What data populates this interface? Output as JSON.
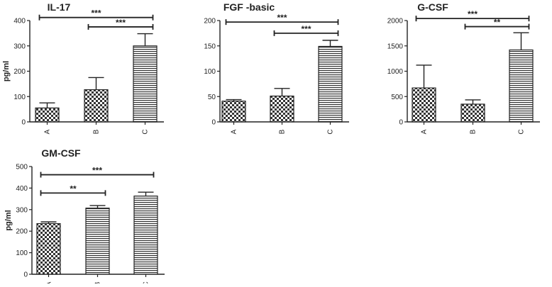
{
  "chart_data": [
    {
      "type": "bar",
      "title": "IL-17",
      "ylabel": "pg/ml",
      "categories": [
        "A",
        "B",
        "C"
      ],
      "values": [
        55,
        127,
        300
      ],
      "errors": [
        20,
        48,
        48
      ],
      "ylim": [
        0,
        400
      ],
      "yticks": [
        "0",
        "100",
        "200",
        "300",
        "400"
      ],
      "significance": [
        {
          "from": 0,
          "to": 2,
          "label": "***",
          "y": 412
        },
        {
          "from": 1,
          "to": 2,
          "label": "***",
          "y": 375
        }
      ]
    },
    {
      "type": "bar",
      "title": "FGF -basic",
      "ylabel": "",
      "categories": [
        "A",
        "B",
        "C"
      ],
      "values": [
        41,
        51,
        149
      ],
      "errors": [
        3,
        15,
        12
      ],
      "ylim": [
        0,
        200
      ],
      "yticks": [
        "0",
        "50",
        "100",
        "150",
        "200"
      ],
      "significance": [
        {
          "from": 0,
          "to": 2,
          "label": "***",
          "y": 197
        },
        {
          "from": 1,
          "to": 2,
          "label": "***",
          "y": 175
        }
      ]
    },
    {
      "type": "bar",
      "title": "G-CSF",
      "ylabel": "",
      "categories": [
        "A",
        "B",
        "C"
      ],
      "values": [
        670,
        350,
        1420
      ],
      "errors": [
        450,
        85,
        340
      ],
      "ylim": [
        0,
        2000
      ],
      "yticks": [
        "0",
        "500",
        "1000",
        "1500",
        "2000"
      ],
      "significance": [
        {
          "from": 0,
          "to": 2,
          "label": "***",
          "y": 2040
        },
        {
          "from": 1,
          "to": 2,
          "label": "**",
          "y": 1880
        }
      ]
    },
    {
      "type": "bar",
      "title": "GM-CSF",
      "ylabel": "pg/ml",
      "categories": [
        "A",
        "B",
        "C"
      ],
      "values": [
        235,
        307,
        363
      ],
      "errors": [
        8,
        12,
        18
      ],
      "ylim": [
        0,
        500
      ],
      "yticks": [
        "0",
        "100",
        "200",
        "300",
        "400",
        "500"
      ],
      "significance": [
        {
          "from": 0,
          "to": 2,
          "label": "***",
          "y": 462
        },
        {
          "from": 0,
          "to": 1,
          "label": "**",
          "y": 377
        }
      ]
    }
  ]
}
